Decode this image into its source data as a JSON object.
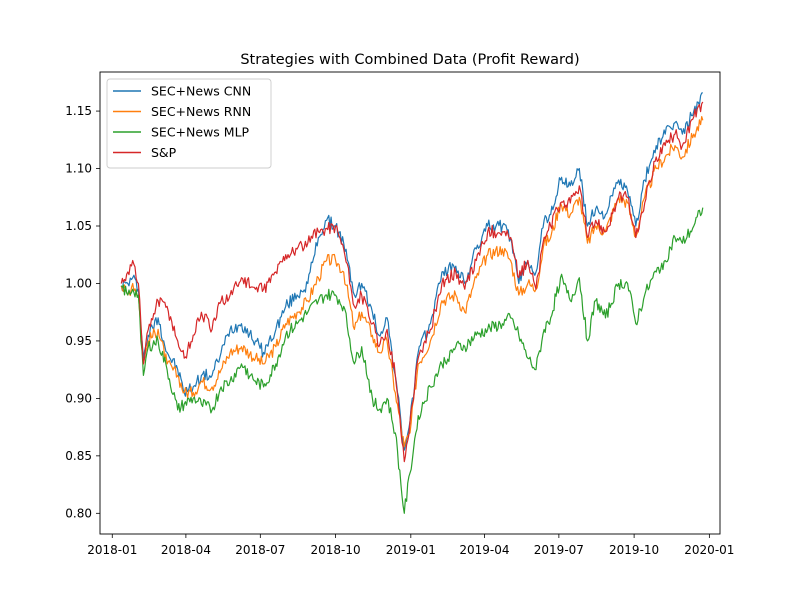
{
  "chart_data": {
    "type": "line",
    "title": "Strategies with Combined Data (Profit Reward)",
    "xlabel": "",
    "ylabel": "",
    "xlim": [
      "2017-12-17",
      "2020-01-14"
    ],
    "ylim": [
      0.782,
      1.184
    ],
    "x_ticks": [
      "2018-01",
      "2018-04",
      "2018-07",
      "2018-10",
      "2019-01",
      "2019-04",
      "2019-07",
      "2019-10",
      "2020-01"
    ],
    "x_tick_dates": [
      "2018-01-01",
      "2018-04-01",
      "2018-07-01",
      "2018-10-01",
      "2019-01-01",
      "2019-04-01",
      "2019-07-01",
      "2019-10-01",
      "2020-01-01"
    ],
    "y_ticks": [
      "0.80",
      "0.85",
      "0.90",
      "0.95",
      "1.00",
      "1.05",
      "1.10",
      "1.15"
    ],
    "y_tick_values": [
      0.8,
      0.85,
      0.9,
      0.95,
      1.0,
      1.05,
      1.1,
      1.15
    ],
    "grid": false,
    "legend_position": "top-left",
    "series": [
      {
        "name": "SEC+News CNN",
        "color": "#1f77b4",
        "x": [
          "2018-01-12",
          "2018-01-20",
          "2018-01-26",
          "2018-02-02",
          "2018-02-08",
          "2018-02-14",
          "2018-02-26",
          "2018-03-09",
          "2018-03-22",
          "2018-03-30",
          "2018-04-10",
          "2018-04-20",
          "2018-05-03",
          "2018-05-14",
          "2018-05-25",
          "2018-06-08",
          "2018-06-25",
          "2018-07-05",
          "2018-07-20",
          "2018-08-01",
          "2018-08-15",
          "2018-08-28",
          "2018-09-10",
          "2018-09-20",
          "2018-10-01",
          "2018-10-11",
          "2018-10-24",
          "2018-11-02",
          "2018-11-15",
          "2018-11-23",
          "2018-12-03",
          "2018-12-13",
          "2018-12-24",
          "2018-12-31",
          "2019-01-10",
          "2019-01-25",
          "2019-02-08",
          "2019-02-25",
          "2019-03-08",
          "2019-03-22",
          "2019-04-05",
          "2019-04-23",
          "2019-05-03",
          "2019-05-13",
          "2019-05-24",
          "2019-06-03",
          "2019-06-13",
          "2019-06-21",
          "2019-07-03",
          "2019-07-15",
          "2019-07-26",
          "2019-08-05",
          "2019-08-15",
          "2019-08-27",
          "2019-09-12",
          "2019-09-23",
          "2019-10-03",
          "2019-10-14",
          "2019-10-28",
          "2019-11-08",
          "2019-11-20",
          "2019-11-29",
          "2019-12-13",
          "2019-12-24"
        ],
        "values": [
          0.998,
          1.0,
          1.005,
          0.995,
          0.935,
          0.955,
          0.97,
          0.94,
          0.925,
          0.905,
          0.91,
          0.92,
          0.92,
          0.94,
          0.96,
          0.965,
          0.95,
          0.94,
          0.96,
          0.98,
          0.99,
          1.0,
          1.04,
          1.055,
          1.05,
          1.035,
          0.99,
          1.0,
          0.975,
          0.955,
          0.97,
          0.92,
          0.855,
          0.88,
          0.94,
          0.965,
          1.01,
          1.015,
          1.0,
          1.03,
          1.05,
          1.05,
          1.04,
          1.0,
          1.02,
          1.01,
          1.055,
          1.06,
          1.09,
          1.085,
          1.1,
          1.05,
          1.065,
          1.06,
          1.09,
          1.08,
          1.05,
          1.09,
          1.12,
          1.13,
          1.14,
          1.13,
          1.15,
          1.166
        ]
      },
      {
        "name": "SEC+News RNN",
        "color": "#ff7f0e",
        "x": [
          "2018-01-12",
          "2018-01-20",
          "2018-01-26",
          "2018-02-02",
          "2018-02-08",
          "2018-02-14",
          "2018-02-26",
          "2018-03-09",
          "2018-03-22",
          "2018-03-30",
          "2018-04-10",
          "2018-04-20",
          "2018-05-03",
          "2018-05-14",
          "2018-05-25",
          "2018-06-08",
          "2018-06-25",
          "2018-07-05",
          "2018-07-20",
          "2018-08-01",
          "2018-08-15",
          "2018-08-28",
          "2018-09-10",
          "2018-09-20",
          "2018-10-01",
          "2018-10-11",
          "2018-10-24",
          "2018-11-02",
          "2018-11-15",
          "2018-11-23",
          "2018-12-03",
          "2018-12-13",
          "2018-12-24",
          "2018-12-31",
          "2019-01-10",
          "2019-01-25",
          "2019-02-08",
          "2019-02-25",
          "2019-03-08",
          "2019-03-22",
          "2019-04-05",
          "2019-04-23",
          "2019-05-03",
          "2019-05-13",
          "2019-05-24",
          "2019-06-03",
          "2019-06-13",
          "2019-06-21",
          "2019-07-03",
          "2019-07-15",
          "2019-07-26",
          "2019-08-05",
          "2019-08-15",
          "2019-08-27",
          "2019-09-12",
          "2019-09-23",
          "2019-10-03",
          "2019-10-14",
          "2019-10-28",
          "2019-11-08",
          "2019-11-20",
          "2019-11-29",
          "2019-12-13",
          "2019-12-24"
        ],
        "values": [
          0.998,
          0.99,
          1.0,
          0.99,
          0.93,
          0.95,
          0.96,
          0.93,
          0.92,
          0.905,
          0.905,
          0.915,
          0.91,
          0.925,
          0.94,
          0.945,
          0.935,
          0.93,
          0.945,
          0.965,
          0.975,
          0.985,
          1.005,
          1.02,
          1.02,
          1.01,
          0.96,
          0.975,
          0.955,
          0.94,
          0.95,
          0.905,
          0.858,
          0.87,
          0.93,
          0.95,
          0.985,
          0.99,
          0.975,
          1.005,
          1.025,
          1.03,
          1.02,
          0.99,
          1.0,
          0.995,
          1.035,
          1.04,
          1.07,
          1.06,
          1.075,
          1.035,
          1.05,
          1.045,
          1.075,
          1.07,
          1.04,
          1.075,
          1.1,
          1.11,
          1.12,
          1.11,
          1.13,
          1.142
        ]
      },
      {
        "name": "SEC+News MLP",
        "color": "#2ca02c",
        "x": [
          "2018-01-12",
          "2018-01-20",
          "2018-01-26",
          "2018-02-02",
          "2018-02-08",
          "2018-02-14",
          "2018-02-26",
          "2018-03-09",
          "2018-03-22",
          "2018-03-30",
          "2018-04-10",
          "2018-04-20",
          "2018-05-03",
          "2018-05-14",
          "2018-05-25",
          "2018-06-08",
          "2018-06-25",
          "2018-07-05",
          "2018-07-20",
          "2018-08-01",
          "2018-08-15",
          "2018-08-28",
          "2018-09-10",
          "2018-09-20",
          "2018-10-01",
          "2018-10-11",
          "2018-10-24",
          "2018-11-02",
          "2018-11-15",
          "2018-11-23",
          "2018-12-03",
          "2018-12-13",
          "2018-12-24",
          "2018-12-31",
          "2019-01-10",
          "2019-01-25",
          "2019-02-08",
          "2019-02-25",
          "2019-03-08",
          "2019-03-22",
          "2019-04-05",
          "2019-04-23",
          "2019-05-03",
          "2019-05-13",
          "2019-05-24",
          "2019-06-03",
          "2019-06-13",
          "2019-06-21",
          "2019-07-03",
          "2019-07-15",
          "2019-07-26",
          "2019-08-05",
          "2019-08-15",
          "2019-08-27",
          "2019-09-12",
          "2019-09-23",
          "2019-10-03",
          "2019-10-14",
          "2019-10-28",
          "2019-11-08",
          "2019-11-20",
          "2019-11-29",
          "2019-12-13",
          "2019-12-24"
        ],
        "values": [
          0.998,
          0.99,
          0.995,
          0.99,
          0.92,
          0.945,
          0.95,
          0.925,
          0.89,
          0.895,
          0.9,
          0.895,
          0.89,
          0.91,
          0.915,
          0.93,
          0.915,
          0.91,
          0.93,
          0.955,
          0.965,
          0.975,
          0.985,
          0.99,
          0.99,
          0.98,
          0.93,
          0.945,
          0.9,
          0.89,
          0.9,
          0.87,
          0.8,
          0.835,
          0.885,
          0.91,
          0.93,
          0.945,
          0.945,
          0.955,
          0.96,
          0.965,
          0.97,
          0.955,
          0.935,
          0.925,
          0.96,
          0.97,
          1.005,
          0.985,
          1.005,
          0.95,
          0.985,
          0.97,
          1.0,
          1.0,
          0.965,
          0.99,
          1.01,
          1.02,
          1.04,
          1.035,
          1.05,
          1.066
        ]
      },
      {
        "name": "S&P",
        "color": "#d62728",
        "x": [
          "2018-01-12",
          "2018-01-20",
          "2018-01-26",
          "2018-02-02",
          "2018-02-08",
          "2018-02-14",
          "2018-02-26",
          "2018-03-09",
          "2018-03-22",
          "2018-03-30",
          "2018-04-10",
          "2018-04-20",
          "2018-05-03",
          "2018-05-14",
          "2018-05-25",
          "2018-06-08",
          "2018-06-25",
          "2018-07-05",
          "2018-07-20",
          "2018-08-01",
          "2018-08-15",
          "2018-08-28",
          "2018-09-10",
          "2018-09-20",
          "2018-10-01",
          "2018-10-11",
          "2018-10-24",
          "2018-11-02",
          "2018-11-15",
          "2018-11-23",
          "2018-12-03",
          "2018-12-13",
          "2018-12-24",
          "2018-12-31",
          "2019-01-10",
          "2019-01-25",
          "2019-02-08",
          "2019-02-25",
          "2019-03-08",
          "2019-03-22",
          "2019-04-05",
          "2019-04-23",
          "2019-05-03",
          "2019-05-13",
          "2019-05-24",
          "2019-06-03",
          "2019-06-13",
          "2019-06-21",
          "2019-07-03",
          "2019-07-15",
          "2019-07-26",
          "2019-08-05",
          "2019-08-15",
          "2019-08-27",
          "2019-09-12",
          "2019-09-23",
          "2019-10-03",
          "2019-10-14",
          "2019-10-28",
          "2019-11-08",
          "2019-11-20",
          "2019-11-29",
          "2019-12-13",
          "2019-12-24"
        ],
        "values": [
          1.0,
          1.01,
          1.02,
          1.0,
          0.93,
          0.96,
          0.985,
          0.98,
          0.95,
          0.935,
          0.955,
          0.975,
          0.96,
          0.985,
          0.99,
          1.005,
          0.995,
          0.995,
          1.01,
          1.025,
          1.03,
          1.035,
          1.045,
          1.048,
          1.05,
          1.03,
          0.98,
          0.99,
          0.965,
          0.945,
          0.96,
          0.92,
          0.845,
          0.88,
          0.935,
          0.96,
          1.0,
          1.01,
          0.995,
          1.02,
          1.045,
          1.045,
          1.04,
          1.005,
          1.02,
          0.995,
          1.04,
          1.05,
          1.07,
          1.07,
          1.085,
          1.04,
          1.055,
          1.045,
          1.075,
          1.075,
          1.04,
          1.07,
          1.11,
          1.12,
          1.13,
          1.12,
          1.145,
          1.158
        ]
      }
    ]
  }
}
